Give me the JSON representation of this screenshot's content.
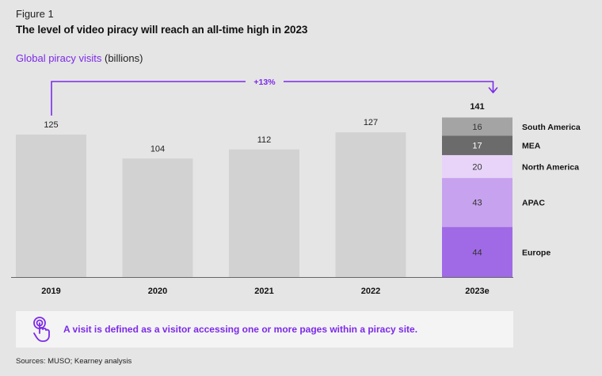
{
  "figure_label": "Figure 1",
  "title": "The level of video piracy will reach an all-time high in 2023",
  "subtitle_main": "Global piracy visits",
  "subtitle_unit": "(billions)",
  "chart_data": {
    "type": "bar",
    "title": "The level of video piracy will reach an all-time high in 2023",
    "ylabel": "Global piracy visits (billions)",
    "ylim": [
      0,
      141
    ],
    "categories": [
      "2019",
      "2020",
      "2021",
      "2022",
      "2023e"
    ],
    "values": [
      125,
      104,
      112,
      127,
      141
    ],
    "stacked_category": "2023e",
    "stack": [
      {
        "name": "Europe",
        "value": 44,
        "color": "#a06ae6"
      },
      {
        "name": "APAC",
        "value": 43,
        "color": "#c7a2ee"
      },
      {
        "name": "North America",
        "value": 20,
        "color": "#e7d4f8"
      },
      {
        "name": "MEA",
        "value": 17,
        "color": "#6b6b6b"
      },
      {
        "name": "South America",
        "value": 16,
        "color": "#a4a4a4"
      }
    ],
    "growth_annotation": "+13%"
  },
  "colors": {
    "accent": "#7c2ae8",
    "bar": "#d2d2d2",
    "axis": "#666666"
  },
  "note": {
    "icon": "tap-hand-icon",
    "text": "A visit is defined as a visitor accessing one or more pages within a piracy site."
  },
  "source": "Sources: MUSO; Kearney analysis"
}
